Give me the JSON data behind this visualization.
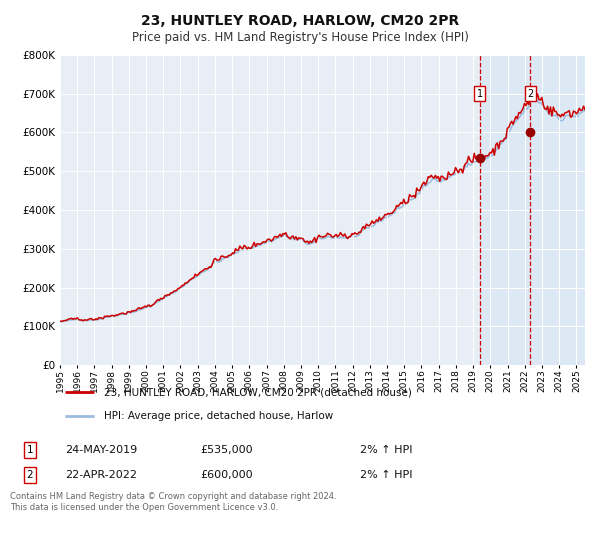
{
  "title": "23, HUNTLEY ROAD, HARLOW, CM20 2PR",
  "subtitle": "Price paid vs. HM Land Registry's House Price Index (HPI)",
  "title_fontsize": 10,
  "subtitle_fontsize": 8.5,
  "background_color": "#ffffff",
  "plot_bg_color": "#e8eef5",
  "grid_color": "#ffffff",
  "line1_color": "#cc0000",
  "line2_color": "#99bbdd",
  "marker_color": "#990000",
  "vline_color": "#cc0000",
  "vspan_color": "#dce8f5",
  "purchase1": {
    "date_num": 2019.38,
    "price": 535000,
    "label": "1",
    "date_str": "24-MAY-2019",
    "hpi_change": "2% ↑ HPI"
  },
  "purchase2": {
    "date_num": 2022.31,
    "price": 600000,
    "label": "2",
    "date_str": "22-APR-2022",
    "hpi_change": "2% ↑ HPI"
  },
  "xmin": 1995,
  "xmax": 2025.5,
  "ymin": 0,
  "ymax": 800000,
  "yticks": [
    0,
    100000,
    200000,
    300000,
    400000,
    500000,
    600000,
    700000,
    800000
  ],
  "ytick_labels": [
    "£0",
    "£100K",
    "£200K",
    "£300K",
    "£400K",
    "£500K",
    "£600K",
    "£700K",
    "£800K"
  ],
  "legend1_label": "23, HUNTLEY ROAD, HARLOW, CM20 2PR (detached house)",
  "legend2_label": "HPI: Average price, detached house, Harlow",
  "footnote": "Contains HM Land Registry data © Crown copyright and database right 2024.\nThis data is licensed under the Open Government Licence v3.0."
}
